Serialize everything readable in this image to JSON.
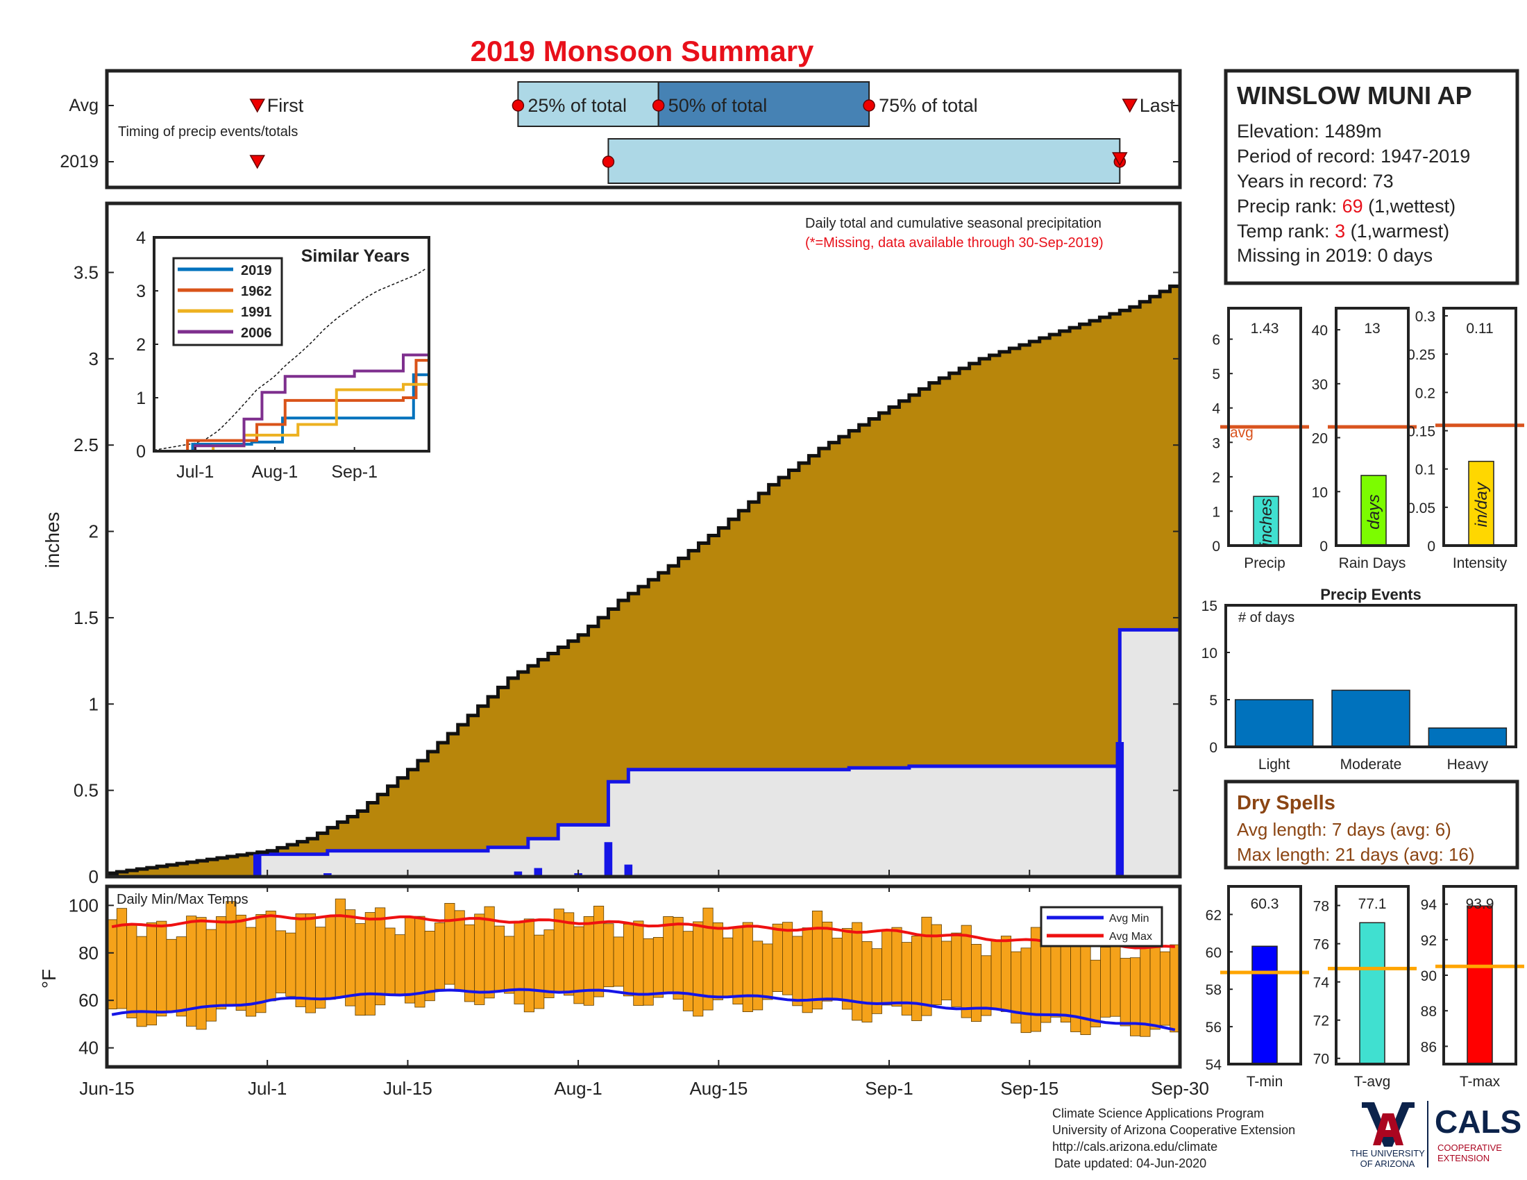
{
  "title": "2019 Monsoon Summary",
  "timing": {
    "label": "Timing of precip events/totals",
    "rows": [
      "Avg",
      "2019"
    ],
    "first_label": "First",
    "last_label": "Last",
    "q25_label": "25% of total",
    "q50_label": "50% of total",
    "q75_label": "75% of total",
    "avg": {
      "first": "2019-06-30",
      "q25": "2019-07-26",
      "q50": "2019-08-09",
      "q75": "2019-08-30",
      "last": "2019-09-25"
    },
    "y2019": {
      "first": "2019-06-30",
      "q25": "2019-08-04",
      "q50": "2019-08-04",
      "last": "2019-09-24"
    }
  },
  "station": {
    "name": "WINSLOW MUNI AP",
    "elevation": "Elevation: 1489m",
    "period": "Period of record: 1947-2019",
    "years": "Years in record: 73",
    "precip_rank_prefix": "Precip rank: ",
    "precip_rank": "69",
    "precip_rank_suffix": " (1,wettest)",
    "temp_rank_prefix": "Temp rank: ",
    "temp_rank": "3",
    "temp_rank_suffix": " (1,warmest)",
    "missing": "Missing in 2019: 0 days"
  },
  "main_panel": {
    "note1": "Daily total and cumulative seasonal precipitation",
    "note2": "(*=Missing, data available through 30-Sep-2019)",
    "ylabel": "inches"
  },
  "temp_panel": {
    "label": "Daily Min/Max Temps",
    "ylabel": "°F",
    "legend": [
      "Avg Min",
      "Avg Max"
    ]
  },
  "inset": {
    "title": "Similar Years",
    "legend": [
      "2019",
      "1962",
      "1991",
      "2006"
    ]
  },
  "mini_bars": [
    {
      "label": "Precip",
      "unit": "inches",
      "value": "1.43"
    },
    {
      "label": "Rain Days",
      "unit": "days",
      "value": "13"
    },
    {
      "label": "Intensity",
      "unit": "in/day",
      "value": "0.11"
    }
  ],
  "avg_label": "avg",
  "events": {
    "title": "Precip Events",
    "ylabel": "# of days",
    "categories": [
      "Light",
      "Moderate",
      "Heavy"
    ]
  },
  "dry_spells": {
    "title": "Dry Spells",
    "avg": "Avg length: 7 days (avg: 6)",
    "max": "Max length: 21 days (avg: 16)"
  },
  "temp_bars": [
    {
      "label": "T-min",
      "value": "60.3"
    },
    {
      "label": "T-avg",
      "value": "77.1"
    },
    {
      "label": "T-max",
      "value": "93.9"
    }
  ],
  "footer": {
    "line1": "Climate Science Applications Program",
    "line2": "University of Arizona Cooperative Extension",
    "line3": "http://cals.arizona.edu/climate",
    "line4": "Date updated: 04-Jun-2020"
  },
  "logo": {
    "ua_line1": "THE UNIVERSITY",
    "ua_line2": "OF ARIZONA",
    "cals": "CALS",
    "cals_line1": "COOPERATIVE",
    "cals_line2": "EXTENSION"
  },
  "colors": {
    "title": "#e8101a",
    "avg_cum_fill": "#b8860b",
    "obs_cum_fill": "#e6e6e6",
    "obs_line": "#1515e6",
    "temp_bar": "#f5a21a",
    "avg_max": "#ee1111",
    "avg_min": "#1515e6",
    "avg_marker": "#d9531e",
    "s2019": "#0072bd",
    "s1962": "#d95319",
    "s1991": "#edb120",
    "s2006": "#7e2f8e",
    "precip_bar": "#40e0d0",
    "rain_bar": "#7cfc00",
    "intensity_bar": "#ffd700",
    "event_bar": "#0072bd",
    "tmin_bar": "#0000ff",
    "tavg_bar": "#40e0d0",
    "tmax_bar": "#ff0000",
    "temp_avg_line": "#ffa500",
    "dry_spell_text": "#8b4513",
    "ua_red": "#ab0520",
    "ua_blue": "#0c234b"
  },
  "chart_data": [
    {
      "type": "area",
      "name": "cumulative_precip",
      "x_tick_labels": [
        "Jun-15",
        "Jul-1",
        "Jul-15",
        "Aug-1",
        "Aug-15",
        "Sep-1",
        "Sep-15",
        "Sep-30"
      ],
      "x_ticks": [
        "2019-06-15",
        "2019-07-01",
        "2019-07-15",
        "2019-08-01",
        "2019-08-15",
        "2019-09-01",
        "2019-09-15",
        "2019-09-30"
      ],
      "xlim": [
        "2019-06-15",
        "2019-09-30"
      ],
      "ylim": [
        0,
        3.9
      ],
      "yticks": [
        0,
        0.5,
        1,
        1.5,
        2,
        2.5,
        3,
        3.5
      ],
      "avg_cumulative": {
        "x": [
          "2019-06-15",
          "2019-06-25",
          "2019-07-01",
          "2019-07-05",
          "2019-07-10",
          "2019-07-15",
          "2019-07-20",
          "2019-07-25",
          "2019-08-01",
          "2019-08-05",
          "2019-08-10",
          "2019-08-15",
          "2019-08-20",
          "2019-08-25",
          "2019-09-01",
          "2019-09-05",
          "2019-09-10",
          "2019-09-15",
          "2019-09-20",
          "2019-09-25",
          "2019-09-30"
        ],
        "y": [
          0.02,
          0.1,
          0.15,
          0.22,
          0.38,
          0.62,
          0.88,
          1.15,
          1.4,
          1.6,
          1.8,
          2.02,
          2.27,
          2.48,
          2.72,
          2.86,
          3.0,
          3.1,
          3.2,
          3.3,
          3.45
        ]
      },
      "obs_cumulative": {
        "x": [
          "2019-06-15",
          "2019-06-30",
          "2019-07-07",
          "2019-07-23",
          "2019-07-27",
          "2019-07-30",
          "2019-08-04",
          "2019-08-06",
          "2019-08-19",
          "2019-08-28",
          "2019-09-03",
          "2019-09-24",
          "2019-09-30"
        ],
        "y": [
          0,
          0.13,
          0.15,
          0.17,
          0.22,
          0.3,
          0.55,
          0.62,
          0.62,
          0.63,
          0.64,
          1.43,
          1.43
        ]
      },
      "daily_precip": {
        "x": [
          "2019-06-30",
          "2019-07-07",
          "2019-07-26",
          "2019-07-28",
          "2019-08-01",
          "2019-08-02",
          "2019-08-04",
          "2019-08-06",
          "2019-08-28",
          "2019-09-03",
          "2019-09-24"
        ],
        "y": [
          0.13,
          0.02,
          0.03,
          0.05,
          0.02,
          0.01,
          0.2,
          0.07,
          0.01,
          0.01,
          0.78
        ]
      }
    },
    {
      "type": "bar",
      "name": "daily_temps",
      "xlim": [
        "2019-06-15",
        "2019-09-30"
      ],
      "ylim": [
        32,
        108
      ],
      "yticks": [
        40,
        60,
        80,
        100
      ],
      "series": [
        {
          "name": "Avg Max",
          "x": [
            "2019-06-15",
            "2019-06-25",
            "2019-07-01",
            "2019-07-10",
            "2019-07-20",
            "2019-08-01",
            "2019-08-15",
            "2019-09-01",
            "2019-09-15",
            "2019-09-30"
          ],
          "values": [
            91,
            93,
            95,
            95,
            94,
            93,
            91,
            89,
            85,
            82
          ]
        },
        {
          "name": "Avg Min",
          "x": [
            "2019-06-15",
            "2019-06-25",
            "2019-07-01",
            "2019-07-10",
            "2019-07-20",
            "2019-08-01",
            "2019-08-15",
            "2019-09-01",
            "2019-09-15",
            "2019-09-30"
          ],
          "values": [
            54,
            57,
            60,
            62,
            64,
            64,
            62,
            59,
            55,
            48
          ]
        }
      ]
    },
    {
      "type": "line",
      "name": "similar_years",
      "x_tick_labels": [
        "Jul-1",
        "Aug-1",
        "Sep-1"
      ],
      "ylim": [
        0,
        4
      ],
      "yticks": [
        0,
        1,
        2,
        3,
        4
      ],
      "series": [
        {
          "name": "2019",
          "x": [
            "2019-06-15",
            "2019-06-30",
            "2019-07-23",
            "2019-08-04",
            "2019-09-24",
            "2019-09-30"
          ],
          "values": [
            0,
            0.13,
            0.17,
            0.62,
            1.43,
            1.43
          ]
        },
        {
          "name": "1962",
          "x": [
            "2019-06-15",
            "2019-06-28",
            "2019-07-25",
            "2019-08-05",
            "2019-09-20",
            "2019-09-25",
            "2019-09-30"
          ],
          "values": [
            0,
            0.2,
            0.5,
            0.95,
            1.0,
            1.7,
            1.85
          ]
        },
        {
          "name": "1991",
          "x": [
            "2019-06-15",
            "2019-07-08",
            "2019-07-20",
            "2019-08-10",
            "2019-08-25",
            "2019-09-20",
            "2019-09-30"
          ],
          "values": [
            0,
            0.1,
            0.3,
            0.5,
            1.15,
            1.25,
            1.3
          ]
        },
        {
          "name": "2006",
          "x": [
            "2019-06-15",
            "2019-07-01",
            "2019-07-20",
            "2019-07-27",
            "2019-08-05",
            "2019-09-01",
            "2019-09-20",
            "2019-09-30"
          ],
          "values": [
            0,
            0.1,
            0.6,
            1.1,
            1.4,
            1.5,
            1.8,
            1.85
          ]
        }
      ]
    },
    {
      "type": "bar",
      "name": "precip_total",
      "categories": [
        "Precip"
      ],
      "values": [
        1.43
      ],
      "avg": 3.45,
      "ylim": [
        0,
        6.9
      ],
      "yticks": [
        0,
        1,
        2,
        3,
        4,
        5,
        6
      ]
    },
    {
      "type": "bar",
      "name": "rain_days",
      "categories": [
        "Rain Days"
      ],
      "values": [
        13
      ],
      "avg": 22,
      "ylim": [
        0,
        44
      ],
      "yticks": [
        0,
        10,
        20,
        30,
        40
      ]
    },
    {
      "type": "bar",
      "name": "intensity",
      "categories": [
        "Intensity"
      ],
      "values": [
        0.11
      ],
      "avg": 0.157,
      "ylim": [
        0,
        0.31
      ],
      "yticks": [
        0,
        0.05,
        0.1,
        0.15,
        0.2,
        0.25,
        0.3
      ]
    },
    {
      "type": "bar",
      "name": "precip_events",
      "categories": [
        "Light",
        "Moderate",
        "Heavy"
      ],
      "values": [
        5,
        6,
        2
      ],
      "ylim": [
        0,
        15
      ],
      "yticks": [
        0,
        5,
        10,
        15
      ]
    },
    {
      "type": "bar",
      "name": "tmin",
      "categories": [
        "T-min"
      ],
      "values": [
        60.3
      ],
      "avg": 58.9,
      "ylim": [
        54,
        63.5
      ],
      "yticks": [
        54,
        56,
        58,
        60,
        62
      ]
    },
    {
      "type": "bar",
      "name": "tavg",
      "categories": [
        "T-avg"
      ],
      "values": [
        77.1
      ],
      "avg": 74.7,
      "ylim": [
        69.7,
        79
      ],
      "yticks": [
        70,
        72,
        74,
        76,
        78
      ]
    },
    {
      "type": "bar",
      "name": "tmax",
      "categories": [
        "T-max"
      ],
      "values": [
        93.9
      ],
      "avg": 90.5,
      "ylim": [
        85,
        95
      ],
      "yticks": [
        86,
        88,
        90,
        92,
        94
      ]
    }
  ]
}
